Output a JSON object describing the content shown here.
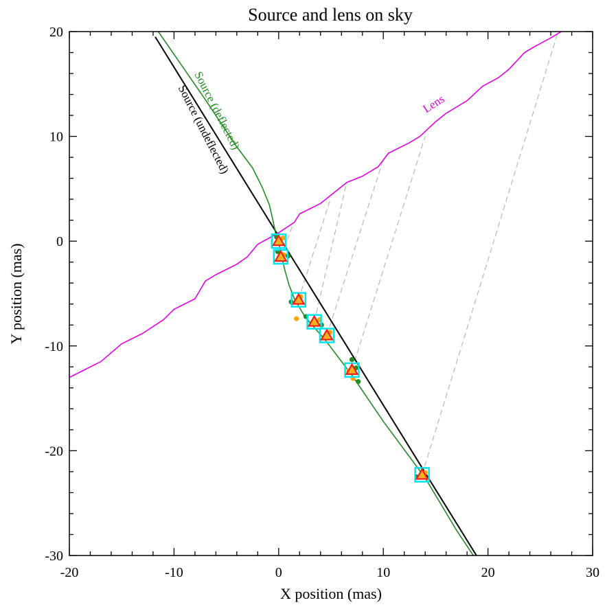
{
  "chart_data": {
    "type": "line",
    "title": "Source and lens on sky",
    "xlabel": "X position (mas)",
    "ylabel": "Y position (mas)",
    "xlim": [
      -20,
      30
    ],
    "ylim": [
      -30,
      20
    ],
    "x_ticks": [
      -20,
      -10,
      0,
      10,
      20,
      30
    ],
    "y_ticks": [
      -30,
      -20,
      -10,
      0,
      10,
      20
    ],
    "x_tick_labels": [
      "-20",
      "-10",
      "0",
      "10",
      "20",
      "30"
    ],
    "y_tick_labels": [
      "-30",
      "-20",
      "-10",
      "0",
      "10",
      "20"
    ],
    "grid": false,
    "legend": "none",
    "annotations": [
      {
        "text": "Source (deflected)",
        "x": -6.2,
        "y": 12.3,
        "color": "#228b22"
      },
      {
        "text": "Source (undeflected)",
        "x": -7.5,
        "y": 10.5,
        "color": "#000000"
      },
      {
        "text": "Lens",
        "x": 15.0,
        "y": 12.8,
        "color": "#e000e0"
      }
    ],
    "series": [
      {
        "color": "#000000",
        "style": "solid",
        "x": [
          -11.8,
          18.9
        ],
        "y": [
          19.5,
          -30
        ]
      },
      {
        "color": "#228b22",
        "style": "solid",
        "x": [
          -11.5,
          -7,
          -4,
          -2.5,
          -1.6,
          -0.9,
          -0.6,
          -0.4,
          -0.3,
          -0.2,
          -0.05,
          0.1,
          0.3,
          0.6,
          1.0,
          1.5,
          2.5,
          4.5,
          7,
          10,
          14,
          17,
          18.6
        ],
        "y": [
          20,
          13.5,
          9,
          7,
          5.2,
          3.5,
          2.2,
          1.3,
          0.7,
          0.3,
          0.1,
          -0.6,
          -1.5,
          -2.8,
          -4.2,
          -5.5,
          -7.2,
          -9.5,
          -12.8,
          -17.2,
          -22.6,
          -27.6,
          -30
        ]
      },
      {
        "color": "#e000e0",
        "style": "solid",
        "x": [
          -20,
          -17,
          -15,
          -13,
          -11,
          -10,
          -8,
          -7,
          -6,
          -4,
          -3,
          -2,
          0,
          1.5,
          2,
          4,
          5,
          6.5,
          8,
          9.5,
          10.5,
          12.5,
          13.5,
          15,
          16,
          18,
          19.5,
          21,
          22,
          23.5,
          24.5,
          26,
          27.5
        ],
        "y": [
          -13,
          -11.5,
          -9.8,
          -8.8,
          -7.5,
          -6.5,
          -5.5,
          -3.8,
          -3.2,
          -2.2,
          -1.5,
          -0.3,
          0.8,
          1.8,
          2.6,
          3.6,
          4.4,
          5.6,
          6.2,
          7.1,
          8.4,
          9.4,
          10.0,
          11.4,
          12.2,
          13.4,
          14.8,
          15.6,
          16.4,
          18.0,
          18.6,
          19.4,
          20.3
        ]
      }
    ],
    "connectors": {
      "color": "#bbbbbb",
      "style": "dashed",
      "pairs": [
        [
          [
            0.0,
            0.0
          ],
          [
            0.7,
            0.2
          ]
        ],
        [
          [
            0.2,
            -1.5
          ],
          [
            1.3,
            1.4
          ]
        ],
        [
          [
            1.9,
            -5.6
          ],
          [
            5.0,
            4.2
          ]
        ],
        [
          [
            3.4,
            -7.7
          ],
          [
            6.5,
            5.6
          ]
        ],
        [
          [
            4.6,
            -9.0
          ],
          [
            10.0,
            7.8
          ]
        ],
        [
          [
            7.0,
            -12.3
          ],
          [
            14.0,
            10.0
          ]
        ],
        [
          [
            13.7,
            -22.3
          ],
          [
            26.7,
            20.0
          ]
        ]
      ]
    },
    "markers": [
      {
        "x": 0.0,
        "y": 0.0
      },
      {
        "x": 0.2,
        "y": -1.5
      },
      {
        "x": 1.9,
        "y": -5.6
      },
      {
        "x": 3.4,
        "y": -7.7
      },
      {
        "x": 4.6,
        "y": -9.0
      },
      {
        "x": 7.0,
        "y": -12.3
      },
      {
        "x": 13.7,
        "y": -22.3
      }
    ],
    "marker_colors": {
      "box": "#00e5ee",
      "triangle": "#e8241a",
      "triangle_fill": "#ffb020",
      "dot_green": "#228b22",
      "dot_orange": "#ffa500"
    },
    "scatter_points": [
      {
        "x": -0.2,
        "y": 0.4,
        "c": "g"
      },
      {
        "x": 0.4,
        "y": 0.3,
        "c": "o"
      },
      {
        "x": -0.1,
        "y": -1.0,
        "c": "g"
      },
      {
        "x": 0.5,
        "y": -1.3,
        "c": "o"
      },
      {
        "x": 0.9,
        "y": -1.4,
        "c": "g"
      },
      {
        "x": 1.2,
        "y": -5.8,
        "c": "g"
      },
      {
        "x": 2.1,
        "y": -5.3,
        "c": "o"
      },
      {
        "x": 2.6,
        "y": -7.2,
        "c": "g"
      },
      {
        "x": 1.7,
        "y": -7.4,
        "c": "o"
      },
      {
        "x": 3.9,
        "y": -7.5,
        "c": "o"
      },
      {
        "x": 4.1,
        "y": -8.0,
        "c": "g"
      },
      {
        "x": 4.9,
        "y": -8.7,
        "c": "o"
      },
      {
        "x": 7.0,
        "y": -11.3,
        "c": "g"
      },
      {
        "x": 6.7,
        "y": -12.4,
        "c": "o"
      },
      {
        "x": 7.4,
        "y": -12.1,
        "c": "g"
      },
      {
        "x": 7.1,
        "y": -13.1,
        "c": "o"
      },
      {
        "x": 7.6,
        "y": -13.4,
        "c": "g"
      },
      {
        "x": 13.2,
        "y": -22.5,
        "c": "g"
      },
      {
        "x": 14.0,
        "y": -22.1,
        "c": "o"
      }
    ]
  }
}
